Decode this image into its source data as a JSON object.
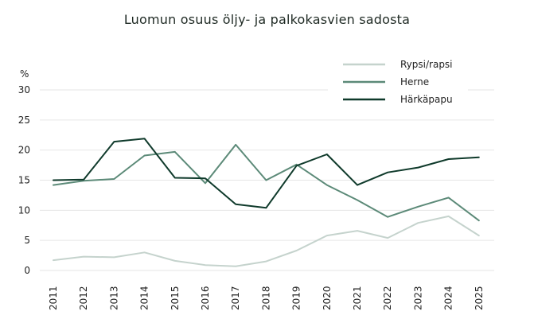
{
  "chart_data": {
    "type": "line",
    "title": "Luomun osuus öljy- ja palkokasvien sadosta",
    "ylabel": "%",
    "xlabel": "",
    "ylim": [
      0,
      30
    ],
    "yticks": [
      "0",
      "5",
      "10",
      "15",
      "20",
      "25",
      "30"
    ],
    "x": [
      "2011",
      "2012",
      "2013",
      "2014",
      "2015",
      "2016",
      "2017",
      "2018",
      "2019",
      "2020",
      "2021",
      "2022",
      "2023",
      "2024",
      "2025"
    ],
    "grid": true,
    "legend_position": "top-right",
    "series": [
      {
        "name": "Rypsi/rapsi",
        "color": "#c5d3cd",
        "values": [
          1.7,
          2.3,
          2.2,
          3.0,
          1.6,
          0.9,
          0.7,
          1.5,
          3.3,
          5.8,
          6.6,
          5.4,
          7.9,
          9.0,
          5.8
        ]
      },
      {
        "name": "Herne",
        "color": "#5c8a78",
        "values": [
          14.2,
          14.9,
          15.2,
          19.1,
          19.7,
          14.5,
          20.9,
          15.0,
          17.6,
          14.2,
          11.7,
          8.9,
          10.6,
          12.1,
          8.3
        ]
      },
      {
        "name": "Härkäpapu",
        "color": "#0f3a2b",
        "values": [
          15.0,
          15.1,
          21.4,
          21.9,
          15.4,
          15.3,
          11.0,
          10.4,
          17.4,
          19.3,
          14.2,
          16.3,
          17.1,
          18.5,
          18.8
        ]
      }
    ]
  }
}
